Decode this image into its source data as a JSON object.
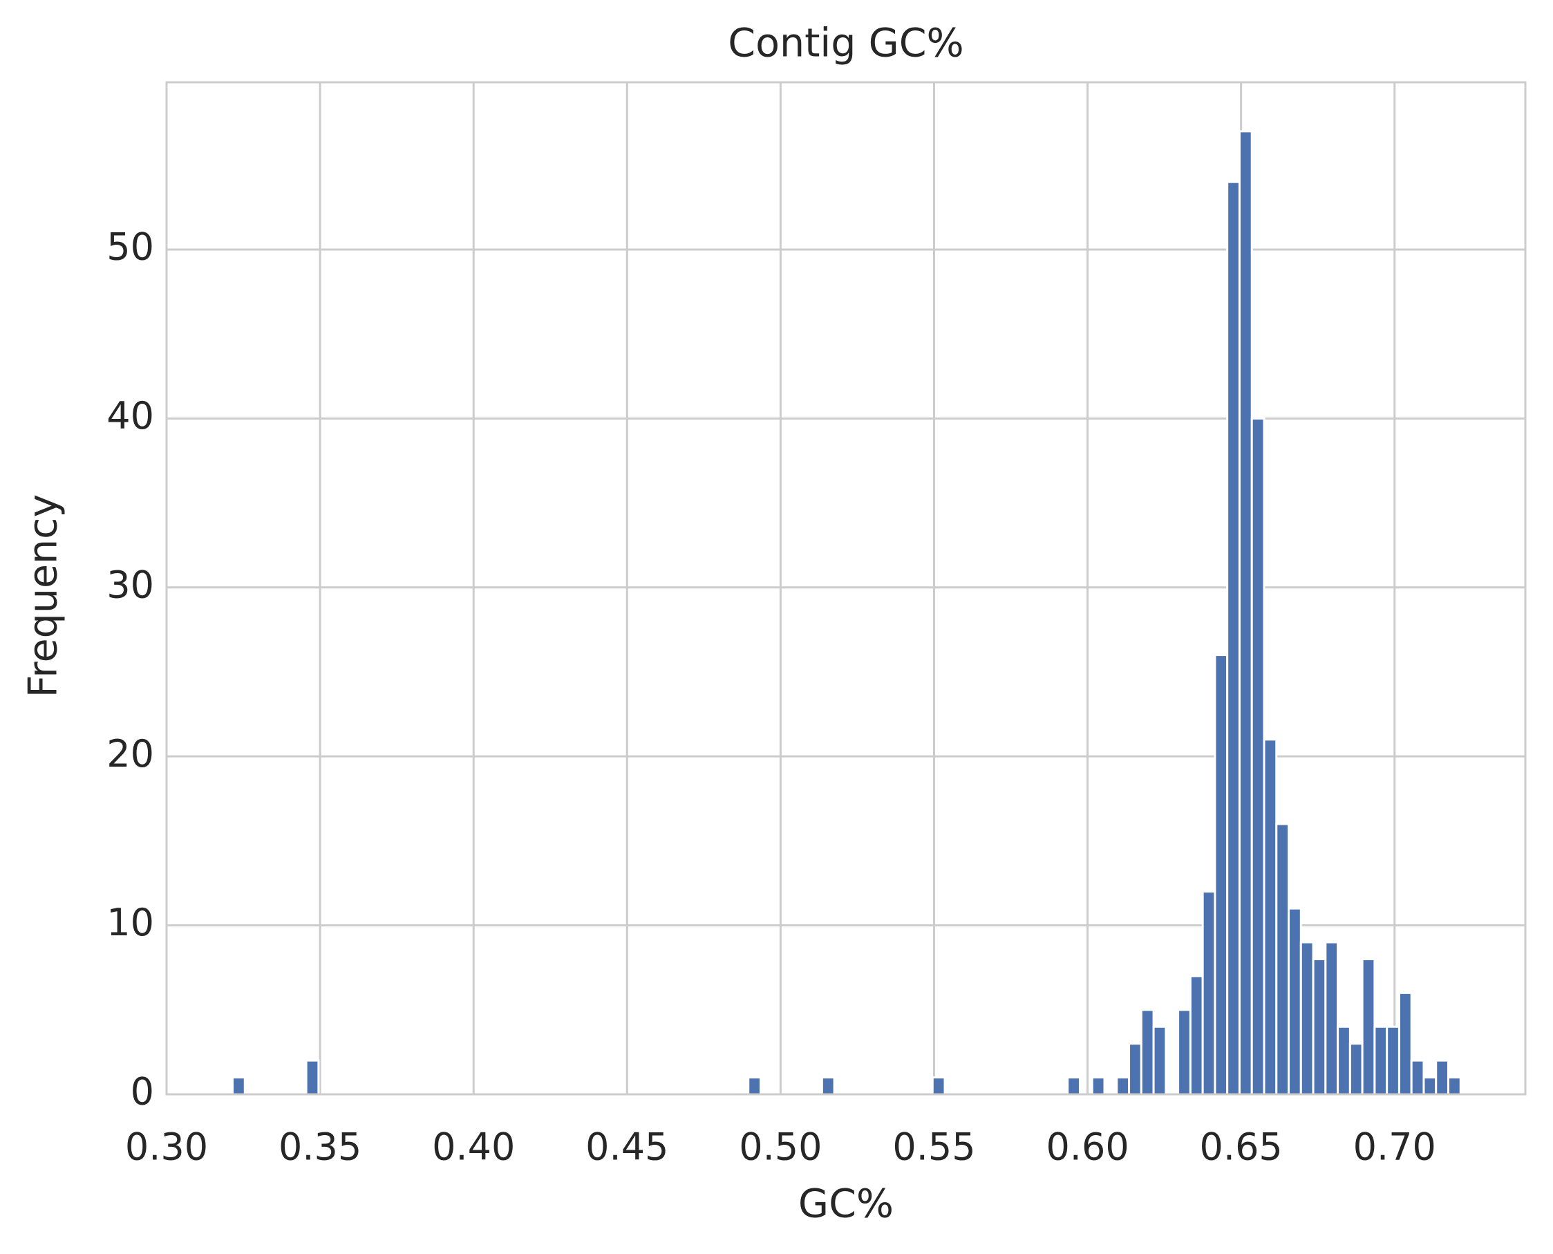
{
  "chart_data": {
    "type": "histogram",
    "title": "Contig GC%",
    "x_label": "GC%",
    "y_label": "Frequency",
    "bins": [
      0.3215,
      0.3255,
      0.3295,
      0.3335,
      0.3375,
      0.3415,
      0.3455,
      0.3495,
      0.3535,
      0.3575,
      0.3615,
      0.3655,
      0.3695,
      0.3735,
      0.3775,
      0.3815,
      0.3855,
      0.3895,
      0.3935,
      0.3975,
      0.4015,
      0.4055,
      0.4095,
      0.4135,
      0.4175,
      0.4215,
      0.4255,
      0.4295,
      0.4335,
      0.4375,
      0.4415,
      0.4455,
      0.4495,
      0.4535,
      0.4575,
      0.4615,
      0.4655,
      0.4695,
      0.4735,
      0.4775,
      0.4815,
      0.4855,
      0.4895,
      0.4935,
      0.4975,
      0.5015,
      0.5055,
      0.5095,
      0.5135,
      0.5175,
      0.5215,
      0.5255,
      0.5295,
      0.5335,
      0.5375,
      0.5415,
      0.5455,
      0.5495,
      0.5535,
      0.5575,
      0.5615,
      0.5655,
      0.5695,
      0.5735,
      0.5775,
      0.5815,
      0.5855,
      0.5895,
      0.5935,
      0.5975,
      0.6015,
      0.6055,
      0.6095,
      0.6135,
      0.6175,
      0.6215,
      0.6255,
      0.6295,
      0.6335,
      0.6375,
      0.6415,
      0.6455,
      0.6495,
      0.6535,
      0.6575,
      0.6615,
      0.6655,
      0.6695,
      0.6735,
      0.6775,
      0.6815,
      0.6855,
      0.6895,
      0.6935,
      0.6975,
      0.7015,
      0.7055,
      0.7095,
      0.7135,
      0.7175,
      0.7215
    ],
    "values": [
      1,
      0,
      0,
      0,
      0,
      0,
      2,
      0,
      0,
      0,
      0,
      0,
      0,
      0,
      0,
      0,
      0,
      0,
      0,
      0,
      0,
      0,
      0,
      0,
      0,
      0,
      0,
      0,
      0,
      0,
      0,
      0,
      0,
      0,
      0,
      0,
      0,
      0,
      0,
      0,
      0,
      0,
      1,
      0,
      0,
      0,
      0,
      0,
      1,
      0,
      0,
      0,
      0,
      0,
      0,
      0,
      0,
      1,
      0,
      0,
      0,
      0,
      0,
      0,
      0,
      0,
      0,
      0,
      1,
      0,
      1,
      0,
      1,
      3,
      5,
      4,
      0,
      5,
      7,
      12,
      26,
      54,
      57,
      40,
      21,
      16,
      11,
      9,
      8,
      9,
      4,
      3,
      8,
      4,
      4,
      6,
      2,
      1,
      2,
      1
    ],
    "color": "#4c72b0",
    "xlim": [
      0.3,
      0.7426
    ],
    "ylim": [
      0,
      59.9
    ],
    "xticks": [
      {
        "value": 0.3,
        "label": "0.30"
      },
      {
        "value": 0.35,
        "label": "0.35"
      },
      {
        "value": 0.4,
        "label": "0.40"
      },
      {
        "value": 0.45,
        "label": "0.45"
      },
      {
        "value": 0.5,
        "label": "0.50"
      },
      {
        "value": 0.55,
        "label": "0.55"
      },
      {
        "value": 0.6,
        "label": "0.60"
      },
      {
        "value": 0.65,
        "label": "0.65"
      },
      {
        "value": 0.7,
        "label": "0.70"
      }
    ],
    "yticks": [
      0,
      10,
      20,
      30,
      40,
      50
    ],
    "grid": true
  }
}
